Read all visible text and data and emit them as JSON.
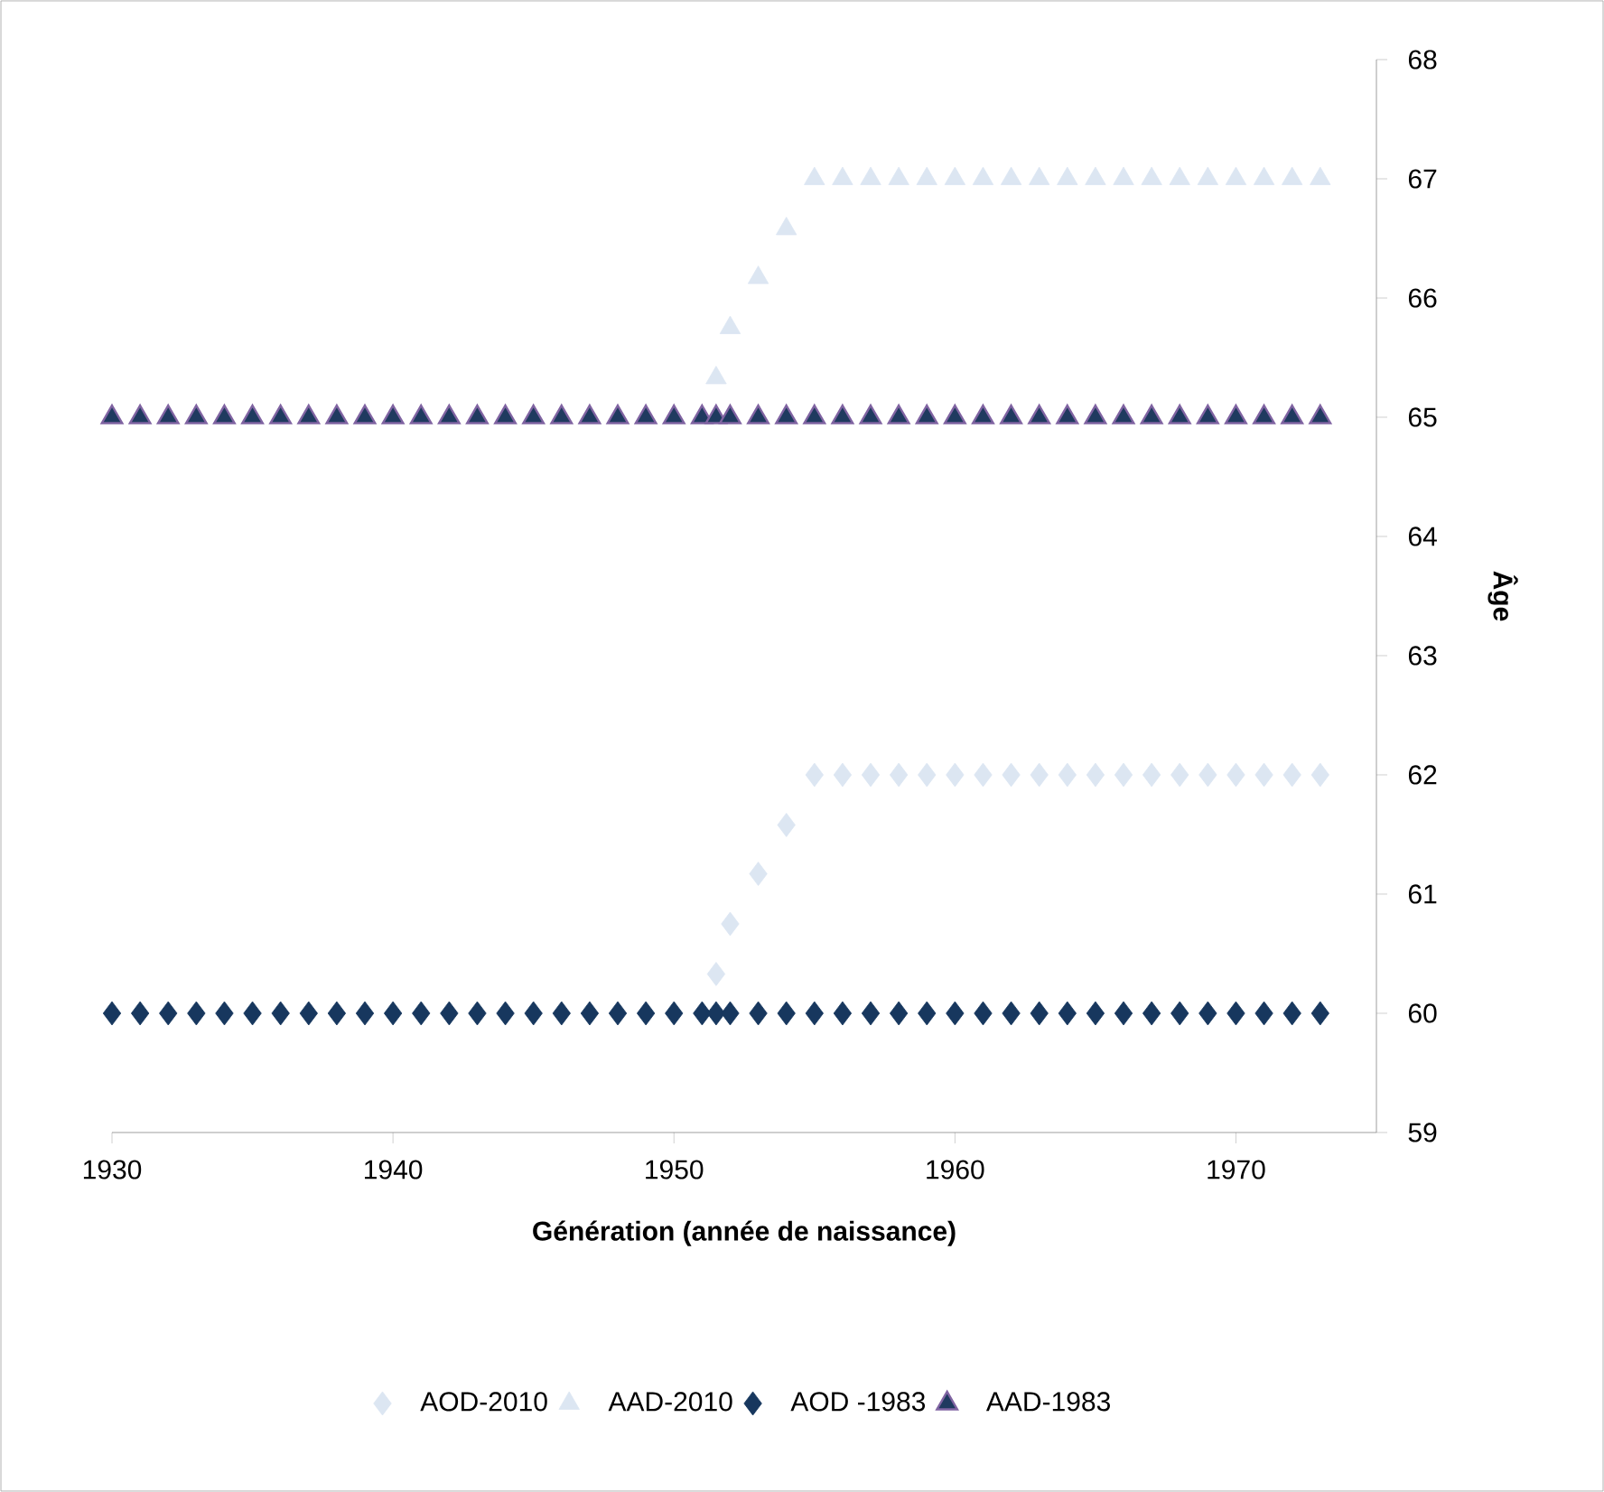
{
  "chart_data": {
    "type": "scatter",
    "xlabel": "Génération (année de naissance)",
    "ylabel": "Âge",
    "x": [
      1930,
      1931,
      1932,
      1933,
      1934,
      1935,
      1936,
      1937,
      1938,
      1939,
      1940,
      1941,
      1942,
      1943,
      1944,
      1945,
      1946,
      1947,
      1948,
      1949,
      1950,
      1951,
      1951.5,
      1952,
      1953,
      1954,
      1955,
      1956,
      1957,
      1958,
      1959,
      1960,
      1961,
      1962,
      1963,
      1964,
      1965,
      1966,
      1967,
      1968,
      1969,
      1970,
      1971,
      1972,
      1973
    ],
    "series": [
      {
        "name": "AOD-2010",
        "color": "#dce6f2",
        "marker": "diamond",
        "values": [
          null,
          null,
          null,
          null,
          null,
          null,
          null,
          null,
          null,
          null,
          null,
          null,
          null,
          null,
          null,
          null,
          null,
          null,
          null,
          null,
          null,
          null,
          60.33,
          60.75,
          61.17,
          61.58,
          62,
          62,
          62,
          62,
          62,
          62,
          62,
          62,
          62,
          62,
          62,
          62,
          62,
          62,
          62,
          62,
          62,
          62,
          62
        ]
      },
      {
        "name": "AAD-2010",
        "color": "#dce6f2",
        "marker": "triangle",
        "values": [
          null,
          null,
          null,
          null,
          null,
          null,
          null,
          null,
          null,
          null,
          null,
          null,
          null,
          null,
          null,
          null,
          null,
          null,
          null,
          null,
          null,
          null,
          65.33,
          65.75,
          66.17,
          66.58,
          67,
          67,
          67,
          67,
          67,
          67,
          67,
          67,
          67,
          67,
          67,
          67,
          67,
          67,
          67,
          67,
          67,
          67,
          67
        ]
      },
      {
        "name": "AOD -1983",
        "color": "#17375e",
        "marker": "diamond",
        "values": [
          60,
          60,
          60,
          60,
          60,
          60,
          60,
          60,
          60,
          60,
          60,
          60,
          60,
          60,
          60,
          60,
          60,
          60,
          60,
          60,
          60,
          60,
          60,
          60,
          60,
          60,
          60,
          60,
          60,
          60,
          60,
          60,
          60,
          60,
          60,
          60,
          60,
          60,
          60,
          60,
          60,
          60,
          60,
          60,
          60
        ]
      },
      {
        "name": "AAD-1983",
        "color": "#1f3a5f",
        "marker": "triangle",
        "values": [
          65,
          65,
          65,
          65,
          65,
          65,
          65,
          65,
          65,
          65,
          65,
          65,
          65,
          65,
          65,
          65,
          65,
          65,
          65,
          65,
          65,
          65,
          65,
          65,
          65,
          65,
          65,
          65,
          65,
          65,
          65,
          65,
          65,
          65,
          65,
          65,
          65,
          65,
          65,
          65,
          65,
          65,
          65,
          65,
          65
        ]
      }
    ],
    "xlim": [
      1930,
      1975
    ],
    "xticks": [
      1930,
      1940,
      1950,
      1960,
      1970
    ],
    "ylim": [
      59,
      68
    ],
    "yticks": [
      59,
      60,
      61,
      62,
      63,
      64,
      65,
      66,
      67,
      68
    ],
    "grid": false,
    "legend": "bottom"
  }
}
